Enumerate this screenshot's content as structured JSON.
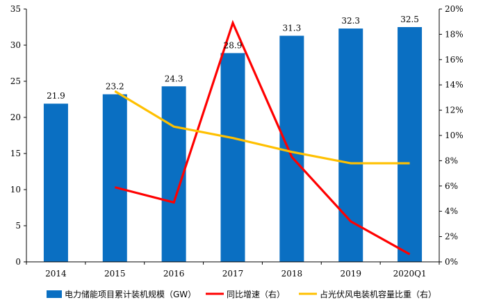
{
  "chart_data": {
    "type": "bar",
    "categories": [
      "2014",
      "2015",
      "2016",
      "2017",
      "2018",
      "2019",
      "2020Q1"
    ],
    "y_left": {
      "min": 0,
      "max": 35,
      "step": 5,
      "ticks": [
        "0",
        "5",
        "10",
        "15",
        "20",
        "25",
        "30",
        "35"
      ]
    },
    "y_right": {
      "min": 0,
      "max": 20,
      "step": 2,
      "ticks": [
        "0%",
        "2%",
        "4%",
        "6%",
        "8%",
        "10%",
        "12%",
        "14%",
        "16%",
        "18%",
        "20%"
      ]
    },
    "series": [
      {
        "name": "电力储能项目累计装机规模（GW）",
        "kind": "bar",
        "axis": "left",
        "color": "#0a6fc2",
        "values": [
          21.9,
          23.2,
          24.3,
          28.9,
          31.3,
          32.3,
          32.5
        ],
        "labels": [
          "21.9",
          "23.2",
          "24.3",
          "28.9",
          "31.3",
          "32.3",
          "32.5"
        ]
      },
      {
        "name": "同比增速（右）",
        "kind": "line",
        "axis": "right",
        "color": "#ff0000",
        "values": [
          null,
          5.9,
          4.7,
          18.9,
          8.3,
          3.2,
          0.6
        ]
      },
      {
        "name": "占光伏风电装机容量比重（右）",
        "kind": "line",
        "axis": "right",
        "color": "#ffc000",
        "values": [
          null,
          13.5,
          10.7,
          9.8,
          8.7,
          7.8,
          7.8
        ]
      }
    ],
    "grid": false,
    "legend_position": "bottom"
  }
}
